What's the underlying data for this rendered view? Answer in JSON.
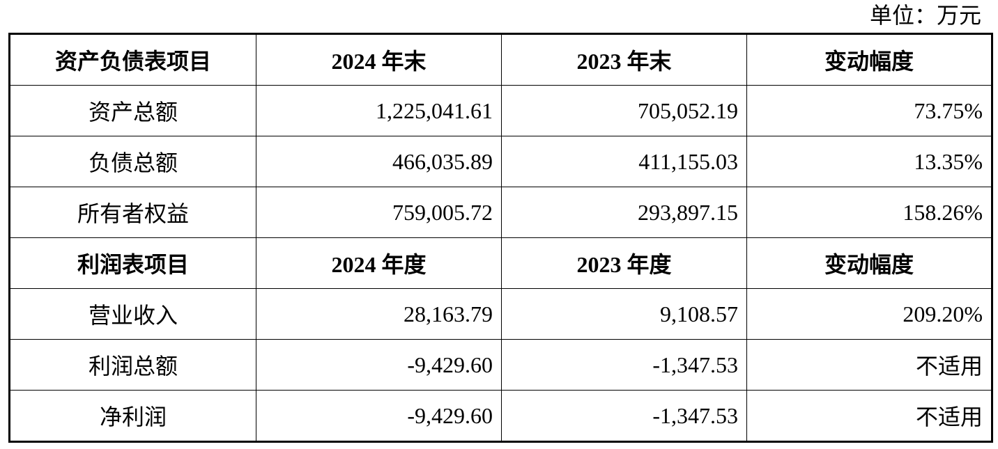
{
  "unit": "单位：万元",
  "sections": [
    {
      "header": [
        "资产负债表项目",
        "2024 年末",
        "2023 年末",
        "变动幅度"
      ],
      "rows": [
        [
          "资产总额",
          "1,225,041.61",
          "705,052.19",
          "73.75%"
        ],
        [
          "负债总额",
          "466,035.89",
          "411,155.03",
          "13.35%"
        ],
        [
          "所有者权益",
          "759,005.72",
          "293,897.15",
          "158.26%"
        ]
      ]
    },
    {
      "header": [
        "利润表项目",
        "2024 年度",
        "2023 年度",
        "变动幅度"
      ],
      "rows": [
        [
          "营业收入",
          "28,163.79",
          "9,108.57",
          "209.20%"
        ],
        [
          "利润总额",
          "-9,429.60",
          "-1,347.53",
          "不适用"
        ],
        [
          "净利润",
          "-9,429.60",
          "-1,347.53",
          "不适用"
        ]
      ]
    }
  ]
}
